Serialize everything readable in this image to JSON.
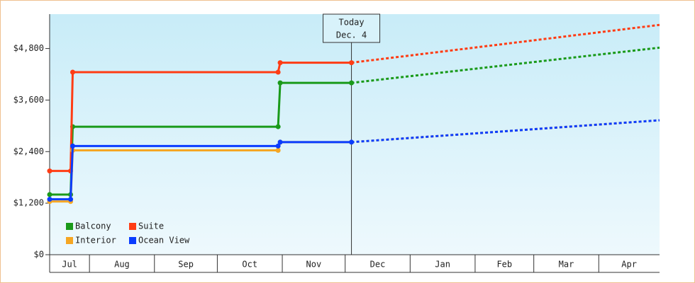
{
  "chart_data": {
    "type": "line",
    "categories": [
      "Jul",
      "Aug",
      "Sep",
      "Oct",
      "Nov",
      "Dec",
      "Jan",
      "Feb",
      "Mar",
      "Apr"
    ],
    "x": [
      12,
      22,
      23,
      121,
      122,
      156
    ],
    "forecast_x": [
      156,
      303
    ],
    "xlim": [
      12,
      303
    ],
    "xticks": [
      31,
      62,
      92,
      123,
      153,
      184,
      215,
      243,
      274
    ],
    "ylim": [
      0,
      5600
    ],
    "yticks": [
      {
        "value": 0,
        "label": "$0"
      },
      {
        "value": 1200,
        "label": "$1,200"
      },
      {
        "value": 2400,
        "label": "$2,400"
      },
      {
        "value": 3600,
        "label": "$3,600"
      },
      {
        "value": 4800,
        "label": "$4,800"
      }
    ],
    "today": {
      "x": 156,
      "label": "Today",
      "date": "Dec. 4"
    },
    "series": [
      {
        "name": "Balcony",
        "color": "#1a9a1a",
        "values": [
          1400,
          1400,
          2980,
          2980,
          4000,
          4000
        ],
        "forecast": [
          4000,
          4820
        ]
      },
      {
        "name": "Suite",
        "color": "#ff3c14",
        "values": [
          1950,
          1950,
          4250,
          4250,
          4470,
          4470
        ],
        "forecast": [
          4470,
          5350
        ]
      },
      {
        "name": "Interior",
        "color": "#f5a623",
        "values": [
          1240,
          1240,
          2430,
          2430,
          2620,
          2620
        ],
        "forecast": [
          2620,
          3130
        ]
      },
      {
        "name": "Ocean View",
        "color": "#0a3cff",
        "values": [
          1290,
          1290,
          2530,
          2530,
          2620,
          2620
        ],
        "forecast": [
          2620,
          3130
        ]
      }
    ]
  }
}
